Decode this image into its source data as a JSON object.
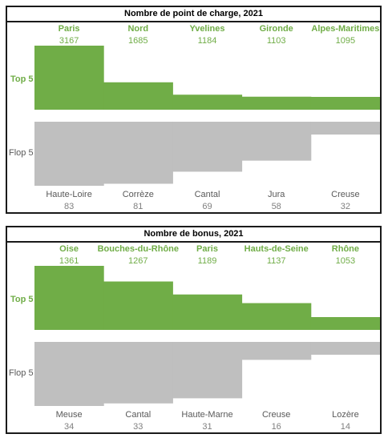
{
  "colors": {
    "top": "#70ad47",
    "flop": "#bfbfbf",
    "flop_label": "#595959",
    "flop_value": "#808080"
  },
  "row_labels": {
    "top": "Top 5",
    "flop": "Flop 5"
  },
  "chart_data": [
    {
      "type": "bar",
      "title": "Nombre de point de charge, 2021",
      "top": {
        "categories": [
          "Paris",
          "Nord",
          "Yvelines",
          "Gironde",
          "Alpes-Maritimes"
        ],
        "values": [
          3167,
          1685,
          1184,
          1103,
          1095
        ]
      },
      "flop": {
        "categories": [
          "Haute-Loire",
          "Corrèze",
          "Cantal",
          "Jura",
          "Creuse"
        ],
        "values": [
          83,
          81,
          69,
          58,
          32
        ]
      }
    },
    {
      "type": "bar",
      "title": "Nombre de bonus, 2021",
      "top": {
        "categories": [
          "Oise",
          "Bouches-du-Rhône",
          "Paris",
          "Hauts-de-Seine",
          "Rhône"
        ],
        "values": [
          1361,
          1267,
          1189,
          1137,
          1053
        ]
      },
      "flop": {
        "categories": [
          "Meuse",
          "Cantal",
          "Haute-Marne",
          "Creuse",
          "Lozère"
        ],
        "values": [
          34,
          33,
          31,
          16,
          14
        ]
      }
    }
  ]
}
